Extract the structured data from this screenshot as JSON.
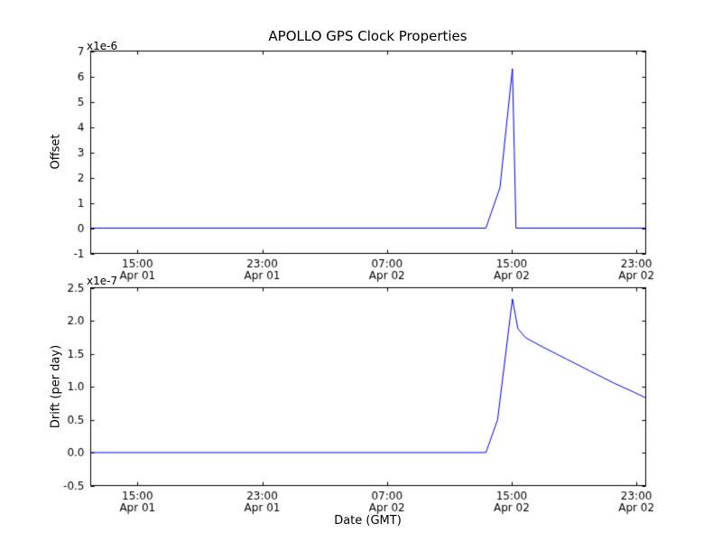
{
  "title": "APOLLO GPS Clock Properties",
  "xlabel": "Date (GMT)",
  "chart_data": [
    {
      "type": "line",
      "name": "offset-subplot",
      "ylabel": "Offset",
      "offset_text": "x1e-6",
      "line_color": "#0000ff",
      "axis_color": "#000000",
      "xlim": [
        12,
        47.6
      ],
      "ylim": [
        -1,
        7
      ],
      "xticks": [
        15,
        23,
        31,
        39,
        47
      ],
      "xtick_labels": [
        "15:00",
        "23:00",
        "07:00",
        "15:00",
        "23:00"
      ],
      "xtick_sublabels": [
        "Apr 01",
        "Apr 01",
        "Apr 02",
        "Apr 02",
        "Apr 02"
      ],
      "yticks": [
        -1,
        0,
        1,
        2,
        3,
        4,
        5,
        6,
        7
      ],
      "ytick_labels": [
        "-1",
        "0",
        "1",
        "2",
        "3",
        "4",
        "5",
        "6",
        "7"
      ],
      "grid": false,
      "legend": false,
      "points": [
        [
          12,
          0
        ],
        [
          37.35,
          0
        ],
        [
          38.25,
          1.6
        ],
        [
          39.05,
          6.3
        ],
        [
          39.28,
          0
        ],
        [
          47.6,
          0
        ]
      ]
    },
    {
      "type": "line",
      "name": "drift-subplot",
      "ylabel": "Drift (per day)",
      "offset_text": "x1e-7",
      "line_color": "#0000ff",
      "axis_color": "#000000",
      "xlim": [
        12,
        47.6
      ],
      "ylim": [
        -0.5,
        2.5
      ],
      "xticks": [
        15,
        23,
        31,
        39,
        47
      ],
      "xtick_labels": [
        "15:00",
        "23:00",
        "07:00",
        "15:00",
        "23:00"
      ],
      "xtick_sublabels": [
        "Apr 01",
        "Apr 01",
        "Apr 02",
        "Apr 02",
        "Apr 02"
      ],
      "yticks": [
        -0.5,
        0,
        0.5,
        1,
        1.5,
        2,
        2.5
      ],
      "ytick_labels": [
        "-0.5",
        "0.0",
        "0.5",
        "1.0",
        "1.5",
        "2.0",
        "2.5"
      ],
      "grid": false,
      "legend": false,
      "points": [
        [
          12,
          0
        ],
        [
          37.35,
          0
        ],
        [
          38.1,
          0.5
        ],
        [
          39.05,
          2.33
        ],
        [
          39.4,
          1.88
        ],
        [
          39.9,
          1.74
        ],
        [
          41.0,
          1.6
        ],
        [
          42.5,
          1.42
        ],
        [
          44.0,
          1.24
        ],
        [
          45.5,
          1.06
        ],
        [
          46.8,
          0.92
        ],
        [
          47.6,
          0.83
        ]
      ]
    }
  ]
}
